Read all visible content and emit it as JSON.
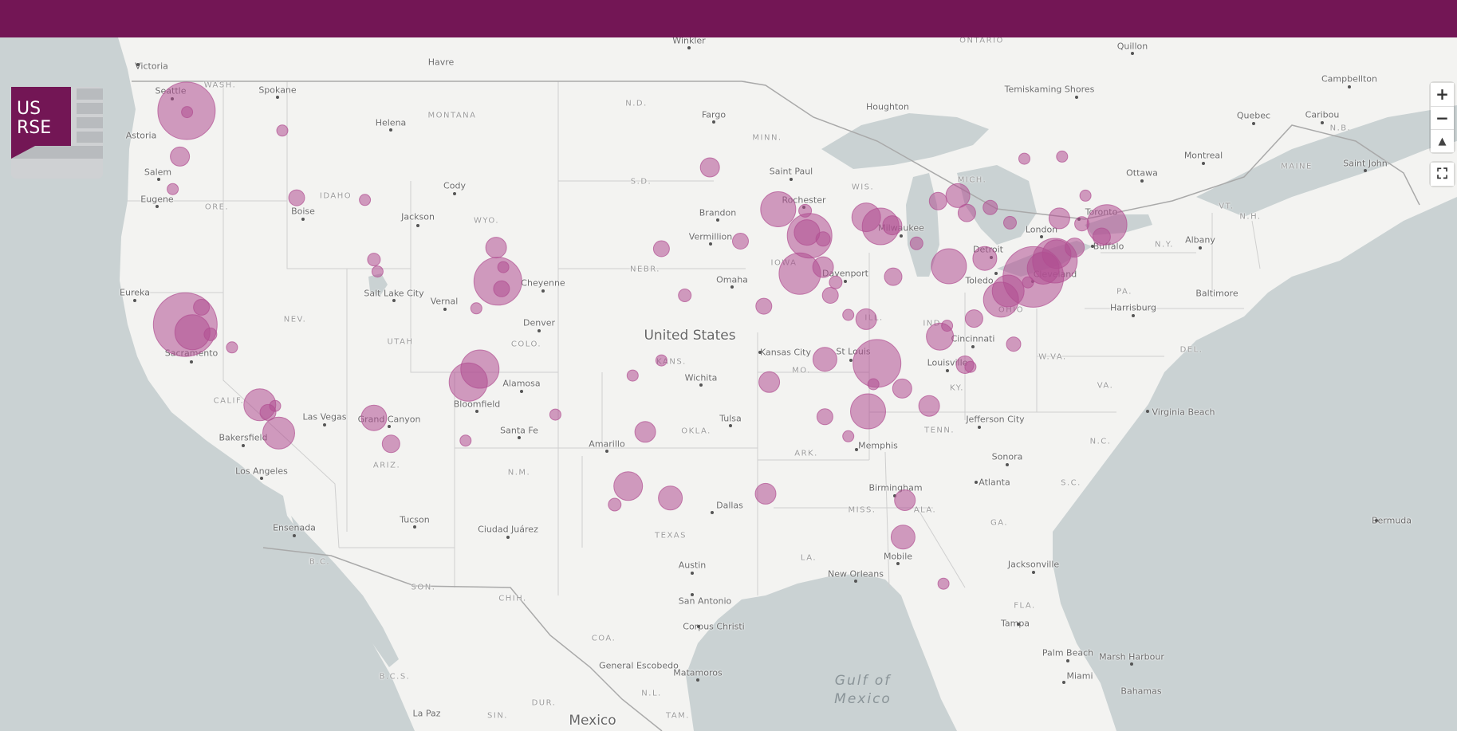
{
  "header": {
    "bar_color": "#731655"
  },
  "logo": {
    "text_line1": "US",
    "text_line2": "RSE",
    "accent": "#731655"
  },
  "controls": {
    "zoom_in": "+",
    "zoom_out": "−",
    "compass": "▲",
    "fullscreen": "⛶"
  },
  "colors": {
    "marker": "#b04e92",
    "water": "#cad2d3",
    "land": "#f3f3f1"
  },
  "map": {
    "countries": [
      "United States",
      "Mexico"
    ],
    "water": [
      "Gulf of",
      "Mexico"
    ],
    "states": [
      "WASH.",
      "ORE.",
      "IDAHO",
      "MONTANA",
      "WYO.",
      "N.D.",
      "S.D.",
      "NEBR.",
      "KANS.",
      "OKLA.",
      "TEXAS",
      "N.M.",
      "ARIZ.",
      "UTAH",
      "NEV.",
      "CALIF.",
      "COLO.",
      "MINN.",
      "IOWA",
      "MO.",
      "ARK.",
      "LA.",
      "WIS.",
      "MICH.",
      "ILL.",
      "IND.",
      "OHIO",
      "KY.",
      "TENN.",
      "MISS.",
      "ALA.",
      "GA.",
      "FLA.",
      "S.C.",
      "N.C.",
      "VA.",
      "W.VA.",
      "PA.",
      "N.Y.",
      "VT.",
      "N.H.",
      "MAINE",
      "DEL.",
      "B.C.",
      "SON.",
      "CHIH.",
      "COA.",
      "N.L.",
      "DUR.",
      "SIN.",
      "TAM.",
      "B.C.S.",
      "ONTARIO",
      "N.B."
    ],
    "cities": [
      "Victoria",
      "Seattle",
      "Spokane",
      "Astoria",
      "Salem",
      "Eugene",
      "Helena",
      "Havre",
      "Winkler",
      "Boise",
      "Jackson",
      "Cody",
      "Salt Lake City",
      "Vernal",
      "Eureka",
      "Sacramento",
      "Cheyenne",
      "Denver",
      "Fargo",
      "Brandon",
      "Vermillion",
      "Omaha",
      "Saint Paul",
      "Rochester",
      "Houghton",
      "Milwaukee",
      "Davenport",
      "Kansas City",
      "St Louis",
      "Wichita",
      "Alamosa",
      "Bloomfield",
      "Santa Fe",
      "Las Vegas",
      "Grand Canyon",
      "Bakersfield",
      "Los Angeles",
      "Ensenada",
      "Tucson",
      "Ciudad Juárez",
      "Amarillo",
      "Tulsa",
      "Dallas",
      "Austin",
      "San Antonio",
      "Corpus Christi",
      "General Escobedo",
      "Matamoros",
      "La Paz",
      "Memphis",
      "Birmingham",
      "Mobile",
      "New Orleans",
      "Jacksonville",
      "Tampa",
      "Palm Beach",
      "Miami",
      "Marsh Harbour",
      "Bahamas",
      "Bermuda",
      "Atlanta",
      "Sonora",
      "Jefferson City",
      "Louisville",
      "Cincinnati",
      "Detroit",
      "Toledo",
      "Cleveland",
      "London",
      "Toronto",
      "Buffalo",
      "Harrisburg",
      "Virginia Beach",
      "Albany",
      "Montreal",
      "Ottawa",
      "Quebec",
      "Temiskaming Shores",
      "Quillon",
      "Campbellton",
      "Caribou",
      "Saint John",
      "Baltimore"
    ],
    "markers": [
      {
        "lon": -122.33,
        "lat": 47.61,
        "r": 36
      },
      {
        "lon": -122.3,
        "lat": 47.55,
        "r": 7
      },
      {
        "lon": -117.0,
        "lat": 46.7,
        "r": 7
      },
      {
        "lon": -122.7,
        "lat": 45.5,
        "r": 12
      },
      {
        "lon": -123.1,
        "lat": 44.0,
        "r": 7
      },
      {
        "lon": -116.2,
        "lat": 43.6,
        "r": 10
      },
      {
        "lon": -112.4,
        "lat": 43.5,
        "r": 7
      },
      {
        "lon": -111.9,
        "lat": 40.75,
        "r": 8
      },
      {
        "lon": -111.7,
        "lat": 40.2,
        "r": 7
      },
      {
        "lon": -105.1,
        "lat": 41.3,
        "r": 13
      },
      {
        "lon": -105.0,
        "lat": 39.75,
        "r": 30
      },
      {
        "lon": -104.7,
        "lat": 40.4,
        "r": 7
      },
      {
        "lon": -104.8,
        "lat": 39.4,
        "r": 10
      },
      {
        "lon": -106.2,
        "lat": 38.5,
        "r": 7
      },
      {
        "lon": -122.4,
        "lat": 37.75,
        "r": 40
      },
      {
        "lon": -122.0,
        "lat": 37.4,
        "r": 22
      },
      {
        "lon": -121.5,
        "lat": 38.55,
        "r": 10
      },
      {
        "lon": -121.0,
        "lat": 37.3,
        "r": 8
      },
      {
        "lon": -119.8,
        "lat": 36.7,
        "r": 7
      },
      {
        "lon": -118.25,
        "lat": 34.05,
        "r": 20
      },
      {
        "lon": -117.8,
        "lat": 33.7,
        "r": 10
      },
      {
        "lon": -117.4,
        "lat": 34.0,
        "r": 7
      },
      {
        "lon": -117.2,
        "lat": 32.75,
        "r": 20
      },
      {
        "lon": -111.9,
        "lat": 33.45,
        "r": 16
      },
      {
        "lon": -110.95,
        "lat": 32.25,
        "r": 11
      },
      {
        "lon": -106.0,
        "lat": 35.7,
        "r": 24
      },
      {
        "lon": -106.65,
        "lat": 35.1,
        "r": 24
      },
      {
        "lon": -106.8,
        "lat": 32.4,
        "r": 7
      },
      {
        "lon": -101.8,
        "lat": 33.6,
        "r": 7
      },
      {
        "lon": -97.5,
        "lat": 35.4,
        "r": 7
      },
      {
        "lon": -95.9,
        "lat": 36.1,
        "r": 7
      },
      {
        "lon": -96.8,
        "lat": 32.8,
        "r": 13
      },
      {
        "lon": -97.75,
        "lat": 30.3,
        "r": 18
      },
      {
        "lon": -98.5,
        "lat": 29.45,
        "r": 8
      },
      {
        "lon": -95.4,
        "lat": 29.75,
        "r": 15
      },
      {
        "lon": -93.2,
        "lat": 45.0,
        "r": 12
      },
      {
        "lon": -95.9,
        "lat": 41.25,
        "r": 10
      },
      {
        "lon": -91.5,
        "lat": 41.6,
        "r": 10
      },
      {
        "lon": -94.6,
        "lat": 39.1,
        "r": 8
      },
      {
        "lon": -90.2,
        "lat": 38.6,
        "r": 10
      },
      {
        "lon": -89.4,
        "lat": 43.07,
        "r": 22
      },
      {
        "lon": -87.9,
        "lat": 43.0,
        "r": 8
      },
      {
        "lon": -87.65,
        "lat": 41.85,
        "r": 28
      },
      {
        "lon": -87.8,
        "lat": 42.0,
        "r": 16
      },
      {
        "lon": -86.9,
        "lat": 41.7,
        "r": 9
      },
      {
        "lon": -88.2,
        "lat": 40.1,
        "r": 26
      },
      {
        "lon": -86.9,
        "lat": 40.4,
        "r": 13
      },
      {
        "lon": -86.2,
        "lat": 39.7,
        "r": 8
      },
      {
        "lon": -86.5,
        "lat": 39.1,
        "r": 10
      },
      {
        "lon": -85.5,
        "lat": 38.2,
        "r": 7
      },
      {
        "lon": -83.7,
        "lat": 42.28,
        "r": 23
      },
      {
        "lon": -83.05,
        "lat": 42.33,
        "r": 12
      },
      {
        "lon": -84.5,
        "lat": 42.7,
        "r": 18
      },
      {
        "lon": -81.7,
        "lat": 41.5,
        "r": 8
      },
      {
        "lon": -83.0,
        "lat": 39.96,
        "r": 11
      },
      {
        "lon": -84.5,
        "lat": 38.0,
        "r": 13
      },
      {
        "lon": -83.9,
        "lat": 35.96,
        "r": 30
      },
      {
        "lon": -86.8,
        "lat": 36.15,
        "r": 15
      },
      {
        "lon": -84.1,
        "lat": 35.0,
        "r": 7
      },
      {
        "lon": -84.4,
        "lat": 33.75,
        "r": 22
      },
      {
        "lon": -86.8,
        "lat": 33.5,
        "r": 10
      },
      {
        "lon": -85.5,
        "lat": 32.6,
        "r": 7
      },
      {
        "lon": -89.9,
        "lat": 35.1,
        "r": 13
      },
      {
        "lon": -90.1,
        "lat": 29.95,
        "r": 13
      },
      {
        "lon": -82.35,
        "lat": 29.65,
        "r": 13
      },
      {
        "lon": -82.45,
        "lat": 27.95,
        "r": 15
      },
      {
        "lon": -80.2,
        "lat": 25.8,
        "r": 7
      },
      {
        "lon": -81.0,
        "lat": 34.0,
        "r": 13
      },
      {
        "lon": -82.5,
        "lat": 34.8,
        "r": 12
      },
      {
        "lon": -79.0,
        "lat": 35.9,
        "r": 11
      },
      {
        "lon": -78.7,
        "lat": 35.8,
        "r": 7
      },
      {
        "lon": -78.5,
        "lat": 38.03,
        "r": 11
      },
      {
        "lon": -80.4,
        "lat": 37.2,
        "r": 17
      },
      {
        "lon": -76.3,
        "lat": 36.85,
        "r": 9
      },
      {
        "lon": -79.9,
        "lat": 40.44,
        "r": 22
      },
      {
        "lon": -77.9,
        "lat": 40.8,
        "r": 15
      },
      {
        "lon": -75.5,
        "lat": 39.7,
        "r": 7
      },
      {
        "lon": -76.6,
        "lat": 39.3,
        "r": 20
      },
      {
        "lon": -77.0,
        "lat": 38.9,
        "r": 22
      },
      {
        "lon": -75.2,
        "lat": 39.95,
        "r": 38
      },
      {
        "lon": -74.65,
        "lat": 40.35,
        "r": 20
      },
      {
        "lon": -74.0,
        "lat": 40.7,
        "r": 28
      },
      {
        "lon": -73.9,
        "lat": 41.0,
        "r": 18
      },
      {
        "lon": -73.75,
        "lat": 42.65,
        "r": 13
      },
      {
        "lon": -72.9,
        "lat": 41.3,
        "r": 12
      },
      {
        "lon": -71.1,
        "lat": 42.36,
        "r": 25
      },
      {
        "lon": -71.4,
        "lat": 41.8,
        "r": 11
      },
      {
        "lon": -72.5,
        "lat": 42.4,
        "r": 9
      },
      {
        "lon": -72.3,
        "lat": 43.7,
        "r": 7
      },
      {
        "lon": -76.5,
        "lat": 42.45,
        "r": 8
      },
      {
        "lon": -77.6,
        "lat": 43.15,
        "r": 9
      },
      {
        "lon": -78.9,
        "lat": 42.9,
        "r": 11
      },
      {
        "lon": -79.4,
        "lat": 43.7,
        "r": 15
      },
      {
        "lon": -80.5,
        "lat": 43.45,
        "r": 11
      },
      {
        "lon": -75.7,
        "lat": 45.4,
        "r": 7
      },
      {
        "lon": -73.6,
        "lat": 45.5,
        "r": 7
      },
      {
        "lon": -80.0,
        "lat": 37.7,
        "r": 7
      }
    ]
  }
}
